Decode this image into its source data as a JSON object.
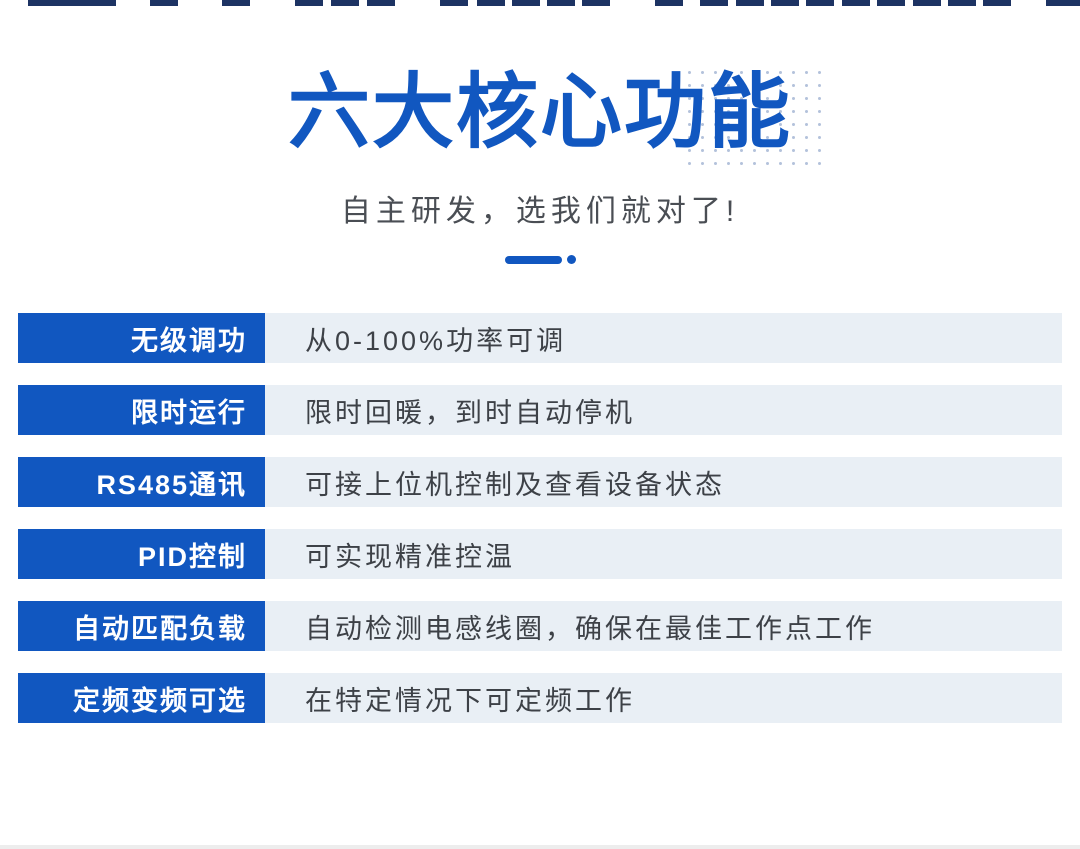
{
  "header": {
    "title": "六大核心功能",
    "subtitle": "自主研发，选我们就对了!"
  },
  "features": [
    {
      "label": "无级调功",
      "desc": "从0-100%功率可调"
    },
    {
      "label": "限时运行",
      "desc": "限时回暖，到时自动停机"
    },
    {
      "label": "RS485通讯",
      "desc": "可接上位机控制及查看设备状态"
    },
    {
      "label": "PID控制",
      "desc": "可实现精准控温"
    },
    {
      "label": "自动匹配负载",
      "desc": "自动检测电感线圈，确保在最佳工作点工作"
    },
    {
      "label": "定频变频可选",
      "desc": "在特定情况下可定频工作"
    }
  ],
  "colors": {
    "accent_blue": "#1157c0",
    "row_bg": "#e9eff5",
    "label_text": "#ffffff",
    "desc_text": "#3d4147",
    "subtitle_text": "#4a4e54",
    "dot_color": "#b3c2db",
    "top_strip_color": "#1d3363",
    "bottom_strip_color": "#ededed"
  },
  "decor": {
    "dot_grid": {
      "rows": 8,
      "cols": 11,
      "pitch": 13,
      "dot_size": 3
    },
    "top_strip": {
      "height": 6,
      "segments": [
        [
          28,
          88
        ],
        [
          150,
          28
        ],
        [
          222,
          28
        ],
        [
          295,
          28
        ],
        [
          331,
          28
        ],
        [
          367,
          28
        ],
        [
          440,
          28
        ],
        [
          477,
          28
        ],
        [
          512,
          28
        ],
        [
          547,
          28
        ],
        [
          582,
          28
        ],
        [
          655,
          28
        ],
        [
          700,
          28
        ],
        [
          736,
          28
        ],
        [
          771,
          28
        ],
        [
          806,
          28
        ],
        [
          842,
          28
        ],
        [
          877,
          28
        ],
        [
          913,
          28
        ],
        [
          948,
          28
        ],
        [
          983,
          28
        ],
        [
          1046,
          34
        ]
      ]
    }
  }
}
